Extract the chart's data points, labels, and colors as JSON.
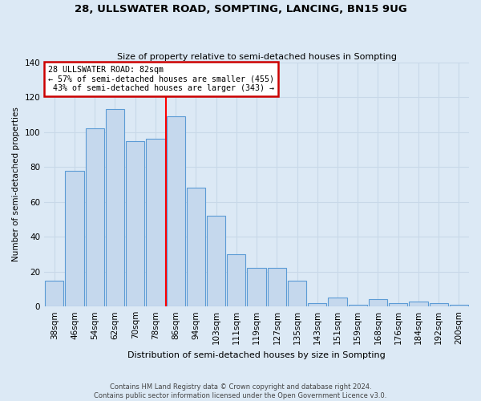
{
  "title": "28, ULLSWATER ROAD, SOMPTING, LANCING, BN15 9UG",
  "subtitle": "Size of property relative to semi-detached houses in Sompting",
  "xlabel": "Distribution of semi-detached houses by size in Sompting",
  "ylabel": "Number of semi-detached properties",
  "bar_labels": [
    "38sqm",
    "46sqm",
    "54sqm",
    "62sqm",
    "70sqm",
    "78sqm",
    "86sqm",
    "94sqm",
    "103sqm",
    "111sqm",
    "119sqm",
    "127sqm",
    "135sqm",
    "143sqm",
    "151sqm",
    "159sqm",
    "168sqm",
    "176sqm",
    "184sqm",
    "192sqm",
    "200sqm"
  ],
  "bar_values": [
    15,
    78,
    102,
    113,
    95,
    96,
    109,
    68,
    52,
    30,
    22,
    22,
    15,
    2,
    5,
    1,
    4,
    2,
    3,
    2,
    1
  ],
  "bar_color": "#c5d8ed",
  "bar_edge_color": "#5b9bd5",
  "annotation_box_edge": "#cc0000",
  "grid_color": "#c8d8e8",
  "background_color": "#dce9f5",
  "ylim": [
    0,
    140
  ],
  "yticks": [
    0,
    20,
    40,
    60,
    80,
    100,
    120,
    140
  ],
  "pct_smaller": 57,
  "count_smaller": 455,
  "pct_larger": 43,
  "count_larger": 343,
  "footer1": "Contains HM Land Registry data © Crown copyright and database right 2024.",
  "footer2": "Contains public sector information licensed under the Open Government Licence v3.0."
}
